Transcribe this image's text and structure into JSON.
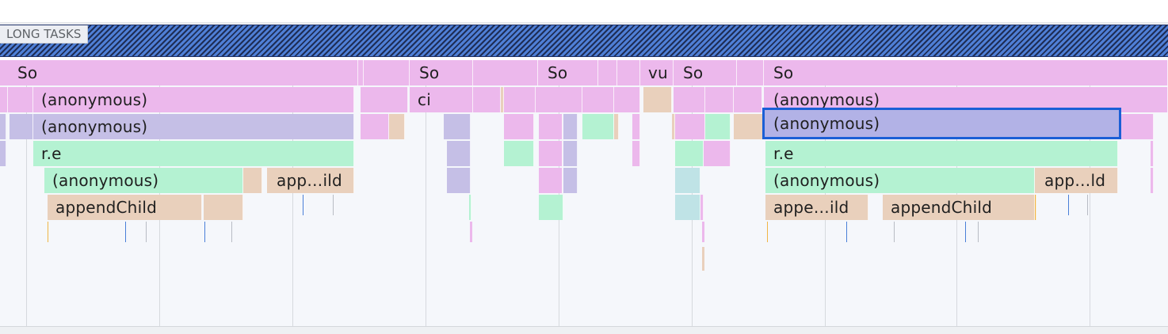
{
  "long_tasks": {
    "label": "LONG TASKS"
  },
  "colors": {
    "pink": "#ecb8ec",
    "lavender": "#c5bfe6",
    "green": "#b4f2d2",
    "tan": "#e9d0bc",
    "teal": "#bfe3e6",
    "selected": "#b2b2e6",
    "selection_border": "#1a5fd6",
    "tick_blue": "#4a7fd8",
    "tick_orange": "#f0b545",
    "tick_gray": "#b8bcc4"
  },
  "flame": {
    "selected_label": "(anonymous)",
    "labels": {
      "so1": "So",
      "so2": "So",
      "so3": "So",
      "vu": "vu",
      "so4": "So",
      "so5": "So",
      "anon1": "(anonymous)",
      "ci": "ci",
      "anon2": "(anonymous)",
      "anon3": "(anonymous)",
      "re1": "r.e",
      "re2": "r.e",
      "anon4": "(anonymous)",
      "app1": "app…ild",
      "anon5": "(anonymous)",
      "app2": "app…ld",
      "append1": "appendChild",
      "appe3": "appe…ild",
      "append2": "appendChild"
    }
  }
}
